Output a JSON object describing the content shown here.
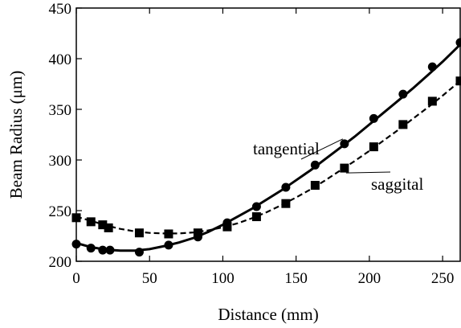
{
  "chart_data": {
    "type": "scatter",
    "title": "",
    "xlabel": "Distance (mm)",
    "ylabel": "Beam Radius (μm)",
    "xlim": [
      0,
      262
    ],
    "ylim": [
      200,
      450
    ],
    "xticks": [
      0,
      50,
      100,
      150,
      200,
      250
    ],
    "yticks": [
      200,
      250,
      300,
      350,
      400,
      450
    ],
    "grid": false,
    "series": [
      {
        "name": "tangential",
        "marker": "circle",
        "line_style": "solid",
        "color": "#000000",
        "points": [
          [
            0,
            217
          ],
          [
            10,
            213
          ],
          [
            18,
            211
          ],
          [
            23,
            211
          ],
          [
            43,
            209
          ],
          [
            63,
            216
          ],
          [
            83,
            224
          ],
          [
            103,
            238
          ],
          [
            123,
            254
          ],
          [
            143,
            273
          ],
          [
            163,
            295
          ],
          [
            183,
            316
          ],
          [
            203,
            341
          ],
          [
            223,
            365
          ],
          [
            243,
            392
          ],
          [
            262,
            416
          ]
        ],
        "fit": [
          [
            0,
            218
          ],
          [
            10,
            214
          ],
          [
            20,
            211.5
          ],
          [
            30,
            210.5
          ],
          [
            40,
            210.5
          ],
          [
            50,
            212
          ],
          [
            60,
            215
          ],
          [
            70,
            218.5
          ],
          [
            80,
            223
          ],
          [
            90,
            229
          ],
          [
            100,
            236
          ],
          [
            110,
            244
          ],
          [
            120,
            252
          ],
          [
            130,
            261
          ],
          [
            140,
            270
          ],
          [
            150,
            280
          ],
          [
            160,
            290
          ],
          [
            170,
            301
          ],
          [
            180,
            312
          ],
          [
            190,
            323
          ],
          [
            200,
            335
          ],
          [
            210,
            347
          ],
          [
            220,
            359
          ],
          [
            230,
            371
          ],
          [
            240,
            384
          ],
          [
            250,
            397
          ],
          [
            262,
            414
          ]
        ]
      },
      {
        "name": "saggital",
        "marker": "square",
        "line_style": "dashed",
        "color": "#000000",
        "points": [
          [
            0,
            243
          ],
          [
            10,
            239
          ],
          [
            18,
            236
          ],
          [
            22,
            233
          ],
          [
            43,
            228
          ],
          [
            63,
            227
          ],
          [
            83,
            228
          ],
          [
            103,
            234
          ],
          [
            123,
            244
          ],
          [
            143,
            257
          ],
          [
            163,
            275
          ],
          [
            183,
            292
          ],
          [
            203,
            313
          ],
          [
            223,
            335
          ],
          [
            243,
            358
          ],
          [
            262,
            378
          ]
        ],
        "fit": [
          [
            0,
            244
          ],
          [
            10,
            240
          ],
          [
            20,
            235.5
          ],
          [
            30,
            232
          ],
          [
            40,
            229.5
          ],
          [
            50,
            228
          ],
          [
            60,
            227.5
          ],
          [
            70,
            227.5
          ],
          [
            80,
            228.5
          ],
          [
            90,
            230.5
          ],
          [
            100,
            233.5
          ],
          [
            110,
            237.5
          ],
          [
            120,
            242.5
          ],
          [
            130,
            248.5
          ],
          [
            140,
            255.5
          ],
          [
            150,
            263
          ],
          [
            160,
            271
          ],
          [
            170,
            280
          ],
          [
            180,
            289.5
          ],
          [
            190,
            299
          ],
          [
            200,
            309
          ],
          [
            210,
            319.5
          ],
          [
            220,
            330
          ],
          [
            230,
            341
          ],
          [
            240,
            352
          ],
          [
            250,
            363.5
          ],
          [
            262,
            378
          ]
        ]
      }
    ],
    "annotations": [
      {
        "text": "tangential",
        "target": [
          183,
          316
        ]
      },
      {
        "text": "saggital",
        "target": [
          183,
          292
        ]
      }
    ]
  }
}
